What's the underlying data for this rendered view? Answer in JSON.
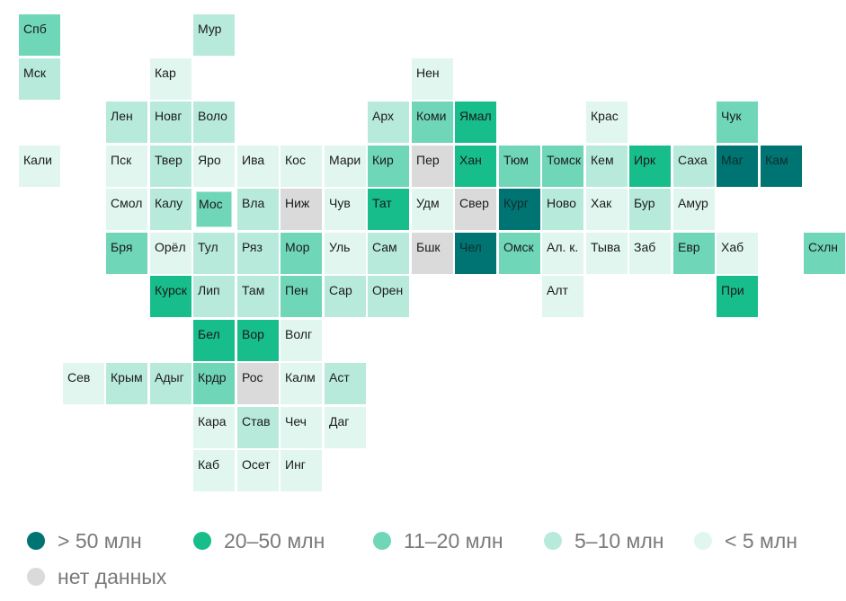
{
  "colors": {
    "l1": "#e0f6ee",
    "l2": "#b8eadb",
    "l3": "#70d6b8",
    "l4": "#17bd8a",
    "l5": "#007373",
    "nd": "#dadada"
  },
  "legend": [
    {
      "label": "> 50 млн",
      "level": "l5"
    },
    {
      "label": "20–50 млн",
      "level": "l4"
    },
    {
      "label": "11–20 млн",
      "level": "l3"
    },
    {
      "label": "5–10 млн",
      "level": "l2"
    },
    {
      "label": "< 5 млн",
      "level": "l1"
    },
    {
      "label": "нет данных",
      "level": "nd"
    }
  ],
  "regions": [
    {
      "name": "Спб",
      "row": 0,
      "col": 0,
      "level": "l3"
    },
    {
      "name": "Мур",
      "row": 0,
      "col": 4,
      "level": "l2"
    },
    {
      "name": "Мск",
      "row": 1,
      "col": 0,
      "level": "l2"
    },
    {
      "name": "Кар",
      "row": 1,
      "col": 3,
      "level": "l1"
    },
    {
      "name": "Нен",
      "row": 1,
      "col": 9,
      "level": "l1"
    },
    {
      "name": "Лен",
      "row": 2,
      "col": 2,
      "level": "l2"
    },
    {
      "name": "Новг",
      "row": 2,
      "col": 3,
      "level": "l2"
    },
    {
      "name": "Воло",
      "row": 2,
      "col": 4,
      "level": "l2"
    },
    {
      "name": "Арх",
      "row": 2,
      "col": 8,
      "level": "l2"
    },
    {
      "name": "Коми",
      "row": 2,
      "col": 9,
      "level": "l3"
    },
    {
      "name": "Ямал",
      "row": 2,
      "col": 10,
      "level": "l4"
    },
    {
      "name": "Крас",
      "row": 2,
      "col": 13,
      "level": "l1"
    },
    {
      "name": "Чук",
      "row": 2,
      "col": 16,
      "level": "l3"
    },
    {
      "name": "Кали",
      "row": 3,
      "col": 0,
      "level": "l1"
    },
    {
      "name": "Пск",
      "row": 3,
      "col": 2,
      "level": "l1"
    },
    {
      "name": "Твер",
      "row": 3,
      "col": 3,
      "level": "l2"
    },
    {
      "name": "Яро",
      "row": 3,
      "col": 4,
      "level": "l1"
    },
    {
      "name": "Ива",
      "row": 3,
      "col": 5,
      "level": "l1"
    },
    {
      "name": "Кос",
      "row": 3,
      "col": 6,
      "level": "l1"
    },
    {
      "name": "Мари",
      "row": 3,
      "col": 7,
      "level": "l1"
    },
    {
      "name": "Кир",
      "row": 3,
      "col": 8,
      "level": "l3"
    },
    {
      "name": "Пер",
      "row": 3,
      "col": 9,
      "level": "nd"
    },
    {
      "name": "Хан",
      "row": 3,
      "col": 10,
      "level": "l4"
    },
    {
      "name": "Тюм",
      "row": 3,
      "col": 11,
      "level": "l3"
    },
    {
      "name": "Томск",
      "row": 3,
      "col": 12,
      "level": "l3"
    },
    {
      "name": "Кем",
      "row": 3,
      "col": 13,
      "level": "l2"
    },
    {
      "name": "Ирк",
      "row": 3,
      "col": 14,
      "level": "l4"
    },
    {
      "name": "Саха",
      "row": 3,
      "col": 15,
      "level": "l2"
    },
    {
      "name": "Маг",
      "row": 3,
      "col": 16,
      "level": "l5"
    },
    {
      "name": "Кам",
      "row": 3,
      "col": 17,
      "level": "l5"
    },
    {
      "name": "Смол",
      "row": 4,
      "col": 2,
      "level": "l1"
    },
    {
      "name": "Калу",
      "row": 4,
      "col": 3,
      "level": "l2"
    },
    {
      "name": "Мос",
      "row": 4,
      "col": 4,
      "level": "l3",
      "selected": true
    },
    {
      "name": "Вла",
      "row": 4,
      "col": 5,
      "level": "l2"
    },
    {
      "name": "Ниж",
      "row": 4,
      "col": 6,
      "level": "nd"
    },
    {
      "name": "Чув",
      "row": 4,
      "col": 7,
      "level": "l1"
    },
    {
      "name": "Тат",
      "row": 4,
      "col": 8,
      "level": "l4"
    },
    {
      "name": "Удм",
      "row": 4,
      "col": 9,
      "level": "l1"
    },
    {
      "name": "Свер",
      "row": 4,
      "col": 10,
      "level": "nd"
    },
    {
      "name": "Кург",
      "row": 4,
      "col": 11,
      "level": "l5"
    },
    {
      "name": "Ново",
      "row": 4,
      "col": 12,
      "level": "l2"
    },
    {
      "name": "Хак",
      "row": 4,
      "col": 13,
      "level": "l1"
    },
    {
      "name": "Бур",
      "row": 4,
      "col": 14,
      "level": "l2"
    },
    {
      "name": "Амур",
      "row": 4,
      "col": 15,
      "level": "l1"
    },
    {
      "name": "Бря",
      "row": 5,
      "col": 2,
      "level": "l3"
    },
    {
      "name": "Орёл",
      "row": 5,
      "col": 3,
      "level": "l1"
    },
    {
      "name": "Тул",
      "row": 5,
      "col": 4,
      "level": "l2"
    },
    {
      "name": "Ряз",
      "row": 5,
      "col": 5,
      "level": "l2"
    },
    {
      "name": "Мор",
      "row": 5,
      "col": 6,
      "level": "l3"
    },
    {
      "name": "Уль",
      "row": 5,
      "col": 7,
      "level": "l1"
    },
    {
      "name": "Сам",
      "row": 5,
      "col": 8,
      "level": "l2"
    },
    {
      "name": "Бшк",
      "row": 5,
      "col": 9,
      "level": "nd"
    },
    {
      "name": "Чел",
      "row": 5,
      "col": 10,
      "level": "l5"
    },
    {
      "name": "Омск",
      "row": 5,
      "col": 11,
      "level": "l3"
    },
    {
      "name": "Ал. к.",
      "row": 5,
      "col": 12,
      "level": "l1"
    },
    {
      "name": "Тыва",
      "row": 5,
      "col": 13,
      "level": "l1"
    },
    {
      "name": "Заб",
      "row": 5,
      "col": 14,
      "level": "l1"
    },
    {
      "name": "Евр",
      "row": 5,
      "col": 15,
      "level": "l3"
    },
    {
      "name": "Хаб",
      "row": 5,
      "col": 16,
      "level": "l1"
    },
    {
      "name": "Схлн",
      "row": 5,
      "col": 18,
      "level": "l3"
    },
    {
      "name": "Курск",
      "row": 6,
      "col": 3,
      "level": "l4"
    },
    {
      "name": "Лип",
      "row": 6,
      "col": 4,
      "level": "l2"
    },
    {
      "name": "Там",
      "row": 6,
      "col": 5,
      "level": "l2"
    },
    {
      "name": "Пен",
      "row": 6,
      "col": 6,
      "level": "l3"
    },
    {
      "name": "Сар",
      "row": 6,
      "col": 7,
      "level": "l2"
    },
    {
      "name": "Орен",
      "row": 6,
      "col": 8,
      "level": "l2"
    },
    {
      "name": "Алт",
      "row": 6,
      "col": 12,
      "level": "l1"
    },
    {
      "name": "При",
      "row": 6,
      "col": 16,
      "level": "l4"
    },
    {
      "name": "Бел",
      "row": 7,
      "col": 4,
      "level": "l4"
    },
    {
      "name": "Вор",
      "row": 7,
      "col": 5,
      "level": "l4"
    },
    {
      "name": "Волг",
      "row": 7,
      "col": 6,
      "level": "l1"
    },
    {
      "name": "Сев",
      "row": 8,
      "col": 1,
      "level": "l1"
    },
    {
      "name": "Крым",
      "row": 8,
      "col": 2,
      "level": "l2"
    },
    {
      "name": "Адыг",
      "row": 8,
      "col": 3,
      "level": "l2"
    },
    {
      "name": "Крдр",
      "row": 8,
      "col": 4,
      "level": "l3"
    },
    {
      "name": "Рос",
      "row": 8,
      "col": 5,
      "level": "nd"
    },
    {
      "name": "Калм",
      "row": 8,
      "col": 6,
      "level": "l1"
    },
    {
      "name": "Аст",
      "row": 8,
      "col": 7,
      "level": "l2"
    },
    {
      "name": "Кара",
      "row": 9,
      "col": 4,
      "level": "l1"
    },
    {
      "name": "Став",
      "row": 9,
      "col": 5,
      "level": "l2"
    },
    {
      "name": "Чеч",
      "row": 9,
      "col": 6,
      "level": "l1"
    },
    {
      "name": "Даг",
      "row": 9,
      "col": 7,
      "level": "l1"
    },
    {
      "name": "Каб",
      "row": 10,
      "col": 4,
      "level": "l1"
    },
    {
      "name": "Осет",
      "row": 10,
      "col": 5,
      "level": "l1"
    },
    {
      "name": "Инг",
      "row": 10,
      "col": 6,
      "level": "l1"
    }
  ]
}
